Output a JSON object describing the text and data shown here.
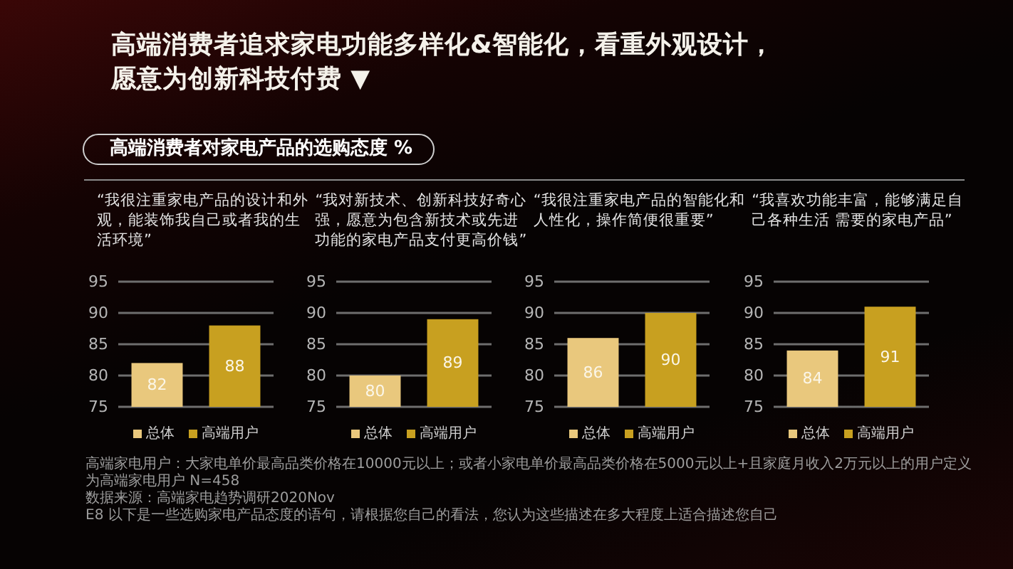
{
  "chart_data": [
    {
      "type": "other",
      "title": "高端消费者追求家电功能多样化&智能化，看重外观设计，愿意为创新科技付费 ▼",
      "subtitle": "高端消费者对家电产品的选购态度 %",
      "annotations": [
        "高端家电用户：大家电单价最高品类价格在10000元以上；或者小家电单价最高品类价格在5000元以上+且家庭月收入2万元以上的用户定义为高端家电用户 N=458",
        "数据来源：高端家电趋势调研2020Nov",
        "E8 以下是一些选购家电产品态度的语句，请根据您自己的看法，您认为这些描述在多大程度上适合描述您自己"
      ]
    },
    {
      "type": "bar",
      "title": "“我很注重家电产品的设计和外观，能装饰我自己或者我的生活环境”",
      "categories": [
        null
      ],
      "series": [
        {
          "name": "总体",
          "color": "#e9c87d",
          "values": [
            82
          ]
        },
        {
          "name": "高端用户",
          "color": "#c8a020",
          "values": [
            88
          ]
        }
      ],
      "ylim": [
        75,
        95
      ],
      "yticks": [
        75,
        80,
        85,
        90,
        95
      ],
      "grid": "y",
      "legend": "bottom",
      "data_labels": true
    },
    {
      "type": "bar",
      "title": "“我对新技术、创新科技好奇心强，愿意为包含新技术或先进功能的家电产品支付更高价钱”",
      "categories": [
        null
      ],
      "series": [
        {
          "name": "总体",
          "color": "#e9c87d",
          "values": [
            80
          ]
        },
        {
          "name": "高端用户",
          "color": "#c8a020",
          "values": [
            89
          ]
        }
      ],
      "ylim": [
        75,
        95
      ],
      "yticks": [
        75,
        80,
        85,
        90,
        95
      ],
      "grid": "y",
      "legend": "bottom",
      "data_labels": true
    },
    {
      "type": "bar",
      "title": "“我很注重家电产品的智能化和人性化，操作简便很重要”",
      "categories": [
        null
      ],
      "series": [
        {
          "name": "总体",
          "color": "#e9c87d",
          "values": [
            86
          ]
        },
        {
          "name": "高端用户",
          "color": "#c8a020",
          "values": [
            90
          ]
        }
      ],
      "ylim": [
        75,
        95
      ],
      "yticks": [
        75,
        80,
        85,
        90,
        95
      ],
      "grid": "y",
      "legend": "bottom",
      "data_labels": true
    },
    {
      "type": "bar",
      "title": "“我喜欢功能丰富，能够满足自己各种生活 需要的家电产品”",
      "categories": [
        null
      ],
      "series": [
        {
          "name": "总体",
          "color": "#e9c87d",
          "values": [
            84
          ]
        },
        {
          "name": "高端用户",
          "color": "#c8a020",
          "values": [
            91
          ]
        }
      ],
      "ylim": [
        75,
        95
      ],
      "yticks": [
        75,
        80,
        85,
        90,
        95
      ],
      "grid": "y",
      "legend": "bottom",
      "data_labels": true
    }
  ]
}
